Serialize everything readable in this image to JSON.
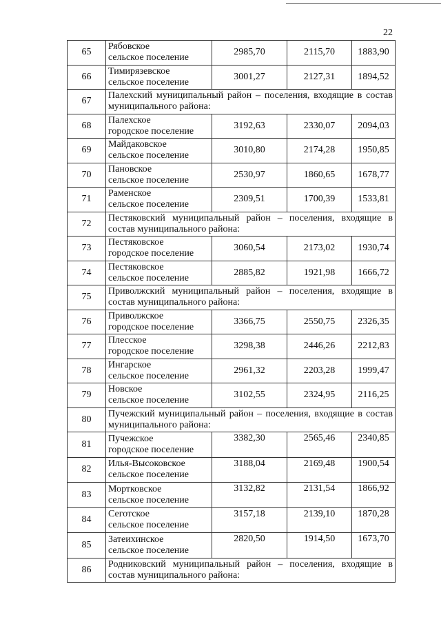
{
  "page_number": "22",
  "rows": [
    {
      "n": "65",
      "name": [
        "Рябовское",
        "сельское поселение"
      ],
      "values": [
        "2985,70",
        "2115,70",
        "1883,90"
      ]
    },
    {
      "n": "66",
      "name": [
        "Тимирязевское",
        "сельское поселение"
      ],
      "values": [
        "3001,27",
        "2127,31",
        "1894,52"
      ]
    },
    {
      "n": "67",
      "group": "Палехский муниципальный район – поселения, входящие в состав муниципального района:"
    },
    {
      "n": "68",
      "name": [
        "Палехское",
        "городское поселение"
      ],
      "values": [
        "3192,63",
        "2330,07",
        "2094,03"
      ]
    },
    {
      "n": "69",
      "name": [
        "Майдаковское",
        "сельское поселение"
      ],
      "values": [
        "3010,80",
        "2174,28",
        "1950,85"
      ]
    },
    {
      "n": "70",
      "name": [
        "Пановское",
        "сельское поселение"
      ],
      "values": [
        "2530,97",
        "1860,65",
        "1678,77"
      ]
    },
    {
      "n": "71",
      "name": [
        "Раменское",
        "сельское поселение"
      ],
      "values": [
        "2309,51",
        "1700,39",
        "1533,81"
      ]
    },
    {
      "n": "72",
      "group": "Пестяковский муниципальный район – поселения, входящие в состав муниципального района:"
    },
    {
      "n": "73",
      "name": [
        "Пестяковское",
        "городское поселение"
      ],
      "values": [
        "3060,54",
        "2173,02",
        "1930,74"
      ]
    },
    {
      "n": "74",
      "name": [
        "Пестяковское",
        "сельское поселение"
      ],
      "values": [
        "2885,82",
        "1921,98",
        "1666,72"
      ]
    },
    {
      "n": "75",
      "group": "Приволжский муниципальный район – поселения, входящие в состав муниципального района:"
    },
    {
      "n": "76",
      "name": [
        "Приволжское",
        "городское поселение"
      ],
      "values": [
        "3366,75",
        "2550,75",
        "2326,35"
      ]
    },
    {
      "n": "77",
      "name": [
        "Плесское",
        "городское поселение"
      ],
      "values": [
        "3298,38",
        "2446,26",
        "2212,83"
      ]
    },
    {
      "n": "78",
      "name": [
        "Ингарское",
        "сельское поселение"
      ],
      "values": [
        "2961,32",
        "2203,28",
        "1999,47"
      ]
    },
    {
      "n": "79",
      "name": [
        "Новское",
        "сельское поселение"
      ],
      "values": [
        "3102,55",
        "2324,95",
        "2116,25"
      ]
    },
    {
      "n": "80",
      "group": "Пучежский муниципальный район – поселения, входящие в состав муниципального района:"
    },
    {
      "n": "81",
      "name": [
        "Пучежское",
        "городское поселение"
      ],
      "values": [
        "3382,30",
        "2565,46",
        "2340,85"
      ]
    },
    {
      "n": "82",
      "name": [
        "Илья-Высоковское",
        "сельское поселение"
      ],
      "values": [
        "3188,04",
        "2169,48",
        "1900,54"
      ]
    },
    {
      "n": "83",
      "name": [
        "Мортковское",
        "сельское поселение"
      ],
      "values": [
        "3132,82",
        "2131,54",
        "1866,92"
      ]
    },
    {
      "n": "84",
      "name": [
        "Сеготское",
        "сельское поселение"
      ],
      "values": [
        "3157,18",
        "2139,10",
        "1870,28"
      ]
    },
    {
      "n": "85",
      "name": [
        "Затеихинское",
        "сельское поселение"
      ],
      "values": [
        "2820,50",
        "1914,50",
        "1673,70"
      ]
    },
    {
      "n": "86",
      "group": "Родниковский муниципальный район – поселения, входящие в состав муниципального района:"
    }
  ]
}
